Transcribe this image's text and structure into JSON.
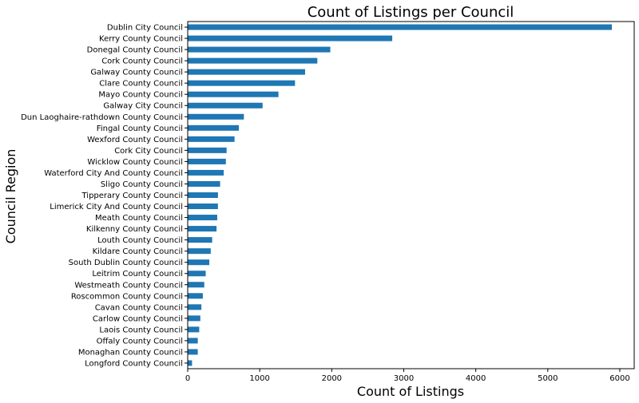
{
  "chart_data": {
    "type": "bar",
    "orientation": "horizontal",
    "title": "Count of Listings per Council",
    "xlabel": "Count of Listings",
    "ylabel": "Council Region",
    "xlim": [
      0,
      6200
    ],
    "xticks": [
      0,
      1000,
      2000,
      3000,
      4000,
      5000,
      6000
    ],
    "grid": false,
    "bar_color": "#1f77b4",
    "categories": [
      "Dublin City Council",
      "Kerry County Council",
      "Donegal County Council",
      "Cork County Council",
      "Galway County Council",
      "Clare County Council",
      "Mayo County Council",
      "Galway City Council",
      "Dun Laoghaire-rathdown County Council",
      "Fingal County Council",
      "Wexford County Council",
      "Cork City Council",
      "Wicklow County Council",
      "Waterford City And County Council",
      "Sligo County Council",
      "Tipperary County Council",
      "Limerick City And County Council",
      "Meath County Council",
      "Kilkenny County Council",
      "Louth County Council",
      "Kildare County Council",
      "South Dublin County Council",
      "Leitrim County Council",
      "Westmeath County Council",
      "Roscommon County Council",
      "Cavan County Council",
      "Carlow County Council",
      "Laois County Council",
      "Offaly County Council",
      "Monaghan County Council",
      "Longford County Council"
    ],
    "values": [
      5890,
      2840,
      1980,
      1800,
      1630,
      1490,
      1260,
      1040,
      780,
      710,
      650,
      540,
      530,
      500,
      450,
      420,
      420,
      410,
      400,
      340,
      320,
      300,
      250,
      230,
      210,
      190,
      175,
      160,
      140,
      140,
      60
    ]
  }
}
